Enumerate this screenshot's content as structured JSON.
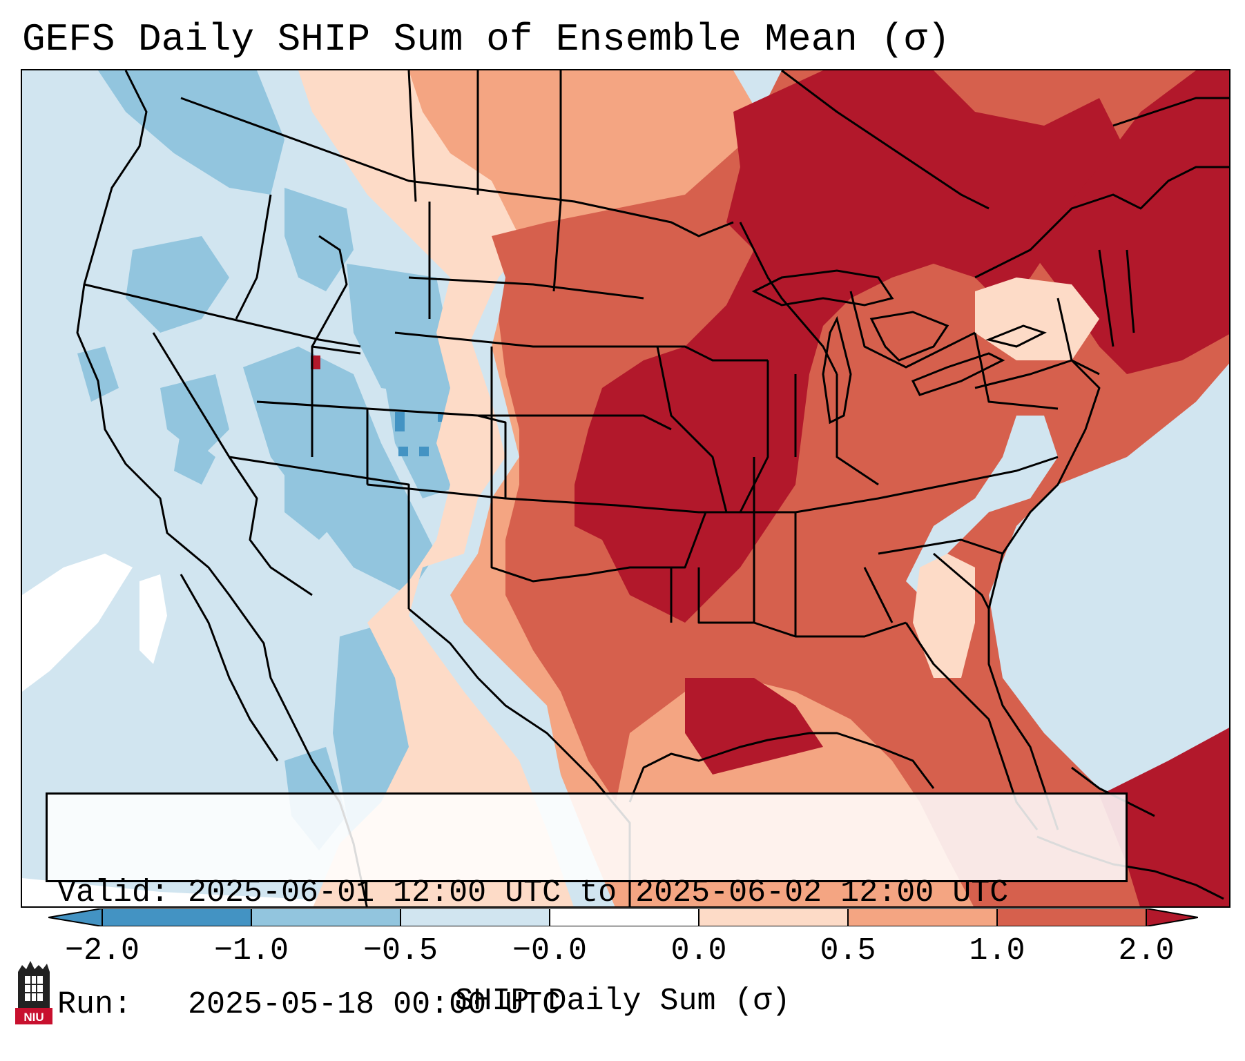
{
  "title": "GEFS Daily SHIP Sum of Ensemble Mean (σ)",
  "info": {
    "valid": "Valid: 2025-06-01 12:00 UTC to 2025-06-02 12:00 UTC",
    "run": "Run:   2025-05-18 00:00 UTC"
  },
  "colorbar": {
    "label": "SHIP Daily Sum (σ)",
    "ticks": [
      "−2.0",
      "−1.0",
      "−0.5",
      "−0.0",
      "0.0",
      "0.5",
      "1.0",
      "2.0"
    ],
    "colors": [
      "#4393c3",
      "#92c5de",
      "#d1e5f0",
      "#ffffff",
      "#fddbc7",
      "#f4a582",
      "#d6604d",
      "#b2182b"
    ]
  },
  "logo": {
    "text": "NIU"
  }
}
